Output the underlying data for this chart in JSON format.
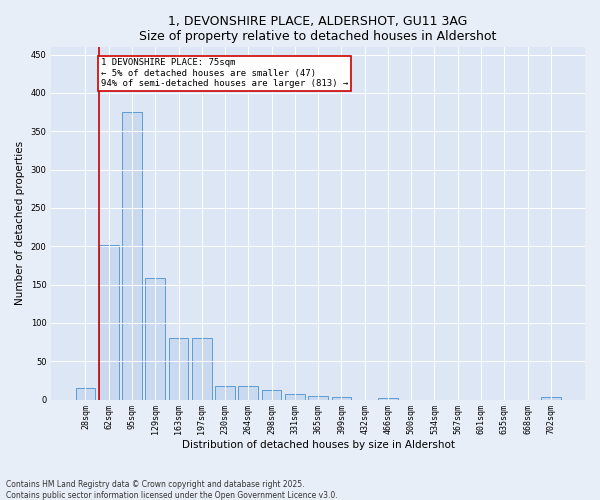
{
  "title_line1": "1, DEVONSHIRE PLACE, ALDERSHOT, GU11 3AG",
  "title_line2": "Size of property relative to detached houses in Aldershot",
  "xlabel": "Distribution of detached houses by size in Aldershot",
  "ylabel": "Number of detached properties",
  "categories": [
    "28sqm",
    "62sqm",
    "95sqm",
    "129sqm",
    "163sqm",
    "197sqm",
    "230sqm",
    "264sqm",
    "298sqm",
    "331sqm",
    "365sqm",
    "399sqm",
    "432sqm",
    "466sqm",
    "500sqm",
    "534sqm",
    "567sqm",
    "601sqm",
    "635sqm",
    "668sqm",
    "702sqm"
  ],
  "values": [
    15,
    202,
    375,
    158,
    80,
    80,
    18,
    18,
    13,
    7,
    5,
    3,
    0,
    2,
    0,
    0,
    0,
    0,
    0,
    0,
    3
  ],
  "bar_color": "#c9d9ef",
  "bar_edge_color": "#5b9bd5",
  "red_line_bar_index": 1,
  "highlight_color": "#cc0000",
  "annotation_text": "1 DEVONSHIRE PLACE: 75sqm\n← 5% of detached houses are smaller (47)\n94% of semi-detached houses are larger (813) →",
  "annotation_box_color": "#cc0000",
  "ylim": [
    0,
    460
  ],
  "yticks": [
    0,
    50,
    100,
    150,
    200,
    250,
    300,
    350,
    400,
    450
  ],
  "background_color": "#e8eef7",
  "plot_bg_color": "#dce6f5",
  "footer_line1": "Contains HM Land Registry data © Crown copyright and database right 2025.",
  "footer_line2": "Contains public sector information licensed under the Open Government Licence v3.0.",
  "title_fontsize": 9,
  "tick_fontsize": 6,
  "xlabel_fontsize": 7.5,
  "ylabel_fontsize": 7.5,
  "annotation_fontsize": 6.5
}
